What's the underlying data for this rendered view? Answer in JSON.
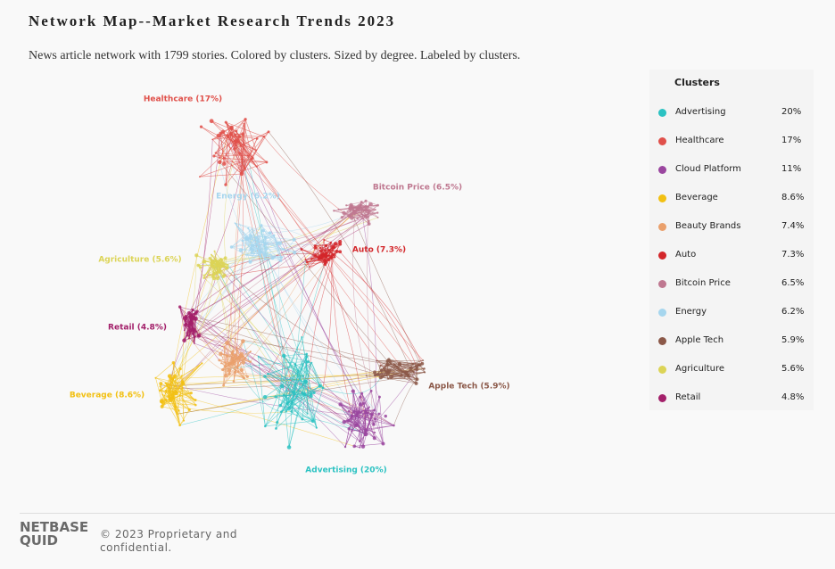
{
  "header": {
    "title": "Network Map--Market Research Trends 2023",
    "subtitle": "News article network with 1799 stories. Colored by clusters. Sized by degree. Labeled by clusters."
  },
  "legend": {
    "title": "Clusters",
    "clusters": [
      {
        "name": "Advertising",
        "share": "20%",
        "color": "#2bc2c2",
        "map_label": "Advertising (20%)"
      },
      {
        "name": "Healthcare",
        "share": "17%",
        "color": "#e0504a",
        "map_label": "Healthcare (17%)"
      },
      {
        "name": "Cloud Platform",
        "share": "11%",
        "color": "#9a469f"
      },
      {
        "name": "Beverage",
        "share": "8.6%",
        "color": "#f2c012",
        "map_label": "Beverage (8.6%)"
      },
      {
        "name": "Beauty Brands",
        "share": "7.4%",
        "color": "#eaa06c"
      },
      {
        "name": "Auto",
        "share": "7.3%",
        "color": "#d3262a",
        "map_label": "Auto (7.3%)"
      },
      {
        "name": "Bitcoin Price",
        "share": "6.5%",
        "color": "#bf7890",
        "map_label": "Bitcoin Price (6.5%)"
      },
      {
        "name": "Energy",
        "share": "6.2%",
        "color": "#a6d6ee",
        "map_label": "Energy (6.2%)"
      },
      {
        "name": "Apple Tech",
        "share": "5.9%",
        "color": "#8b5848",
        "map_label": "Apple Tech (5.9%)"
      },
      {
        "name": "Agriculture",
        "share": "5.6%",
        "color": "#dcd456",
        "map_label": "Agriculture (5.6%)"
      },
      {
        "name": "Retail",
        "share": "4.8%",
        "color": "#a3206a",
        "map_label": "Retail (4.8%)"
      }
    ]
  },
  "footer": {
    "logo_top": "NETBASE",
    "logo_bottom": "QUID",
    "copyright_line1": "© 2023 Proprietary and",
    "copyright_line2": "confidential."
  }
}
